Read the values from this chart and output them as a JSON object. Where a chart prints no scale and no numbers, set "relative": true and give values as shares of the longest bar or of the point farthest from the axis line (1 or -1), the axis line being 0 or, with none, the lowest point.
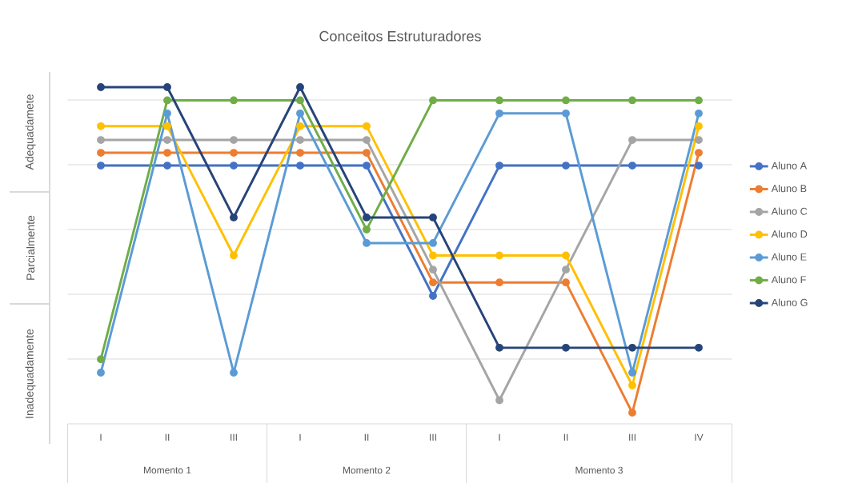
{
  "chart_data": {
    "type": "line",
    "title": "Conceitos Estruturadores",
    "relative": true,
    "categories": [
      "I",
      "II",
      "III",
      "I",
      "II",
      "III",
      "I",
      "II",
      "III",
      "IV"
    ],
    "series": [
      {
        "name": "Aluno A",
        "color": "#4472c4",
        "values": [
          0.767,
          0.767,
          0.767,
          0.767,
          0.767,
          0.38,
          0.767,
          0.767,
          0.767,
          0.767
        ]
      },
      {
        "name": "Aluno B",
        "color": "#ed7d31",
        "values": [
          0.805,
          0.805,
          0.805,
          0.805,
          0.805,
          0.42,
          0.42,
          0.42,
          0.033,
          0.805
        ]
      },
      {
        "name": "Aluno C",
        "color": "#a5a5a5",
        "values": [
          0.843,
          0.843,
          0.843,
          0.843,
          0.843,
          0.458,
          0.07,
          0.458,
          0.843,
          0.843
        ]
      },
      {
        "name": "Aluno D",
        "color": "#ffc000",
        "values": [
          0.884,
          0.884,
          0.5,
          0.884,
          0.884,
          0.5,
          0.5,
          0.5,
          0.114,
          0.884
        ]
      },
      {
        "name": "Aluno E",
        "color": "#5b9bd5",
        "values": [
          0.152,
          0.922,
          0.152,
          0.922,
          0.537,
          0.537,
          0.922,
          0.922,
          0.152,
          0.922
        ]
      },
      {
        "name": "Aluno F",
        "color": "#70ad47",
        "values": [
          0.192,
          0.961,
          0.961,
          0.961,
          0.577,
          0.961,
          0.961,
          0.961,
          0.961,
          0.961
        ]
      },
      {
        "name": "Aluno G",
        "color": "#264478",
        "values": [
          1,
          1,
          0.613,
          1,
          0.613,
          0.613,
          0.226,
          0.226,
          0.226,
          0.226
        ]
      }
    ],
    "annotations": [
      "Adequadamete",
      "Parcialmente",
      "Inadequadamente",
      "Momento 1",
      "Momento 2",
      "Momento 3"
    ],
    "grid": "y",
    "legend": "right",
    "marker": "circle",
    "line_style": "solid"
  }
}
